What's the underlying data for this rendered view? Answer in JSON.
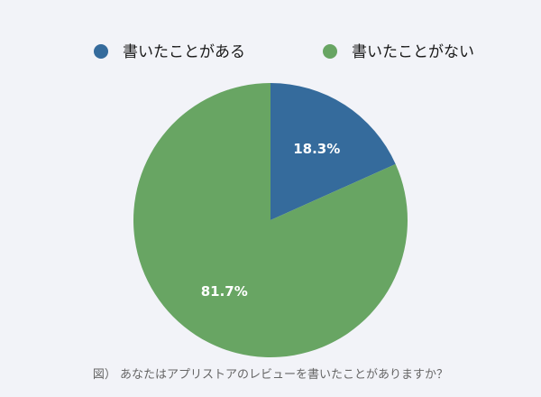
{
  "chart_data": {
    "type": "pie",
    "title": "",
    "caption": "図） あなたはアプリストアのレビューを書いたことがありますか？",
    "legend_position": "top",
    "start_angle_deg": 0,
    "direction": "clockwise",
    "slices": [
      {
        "label": "書いたことがある",
        "value": 18.3,
        "value_label": "18.3%",
        "color": "#356b9c"
      },
      {
        "label": "書いたことがない",
        "value": 81.7,
        "value_label": "81.7%",
        "color": "#68a563"
      }
    ]
  }
}
